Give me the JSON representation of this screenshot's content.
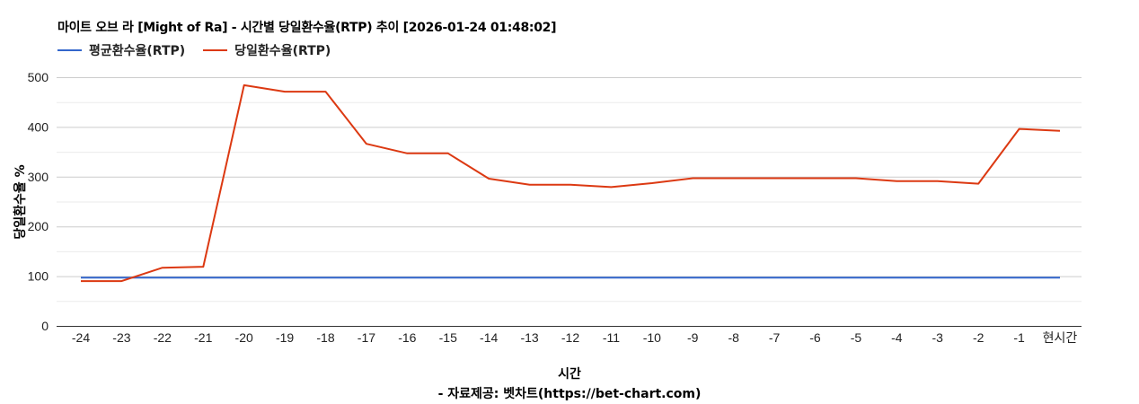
{
  "header": {
    "title": "마이트 오브 라 [Might of Ra] - 시간별 당일환수율(RTP) 추이 [2026-01-24 01:48:02]"
  },
  "legend": {
    "items": [
      {
        "label": "평균환수율(RTP)",
        "color": "#3366cc"
      },
      {
        "label": "당일환수율(RTP)",
        "color": "#dc3912"
      }
    ]
  },
  "axes": {
    "y_title": "당일환수율 %",
    "x_title": "시간",
    "y_ticks": [
      "0",
      "100",
      "200",
      "300",
      "400",
      "500"
    ],
    "x_ticks": [
      "-24",
      "-23",
      "-22",
      "-21",
      "-20",
      "-19",
      "-18",
      "-17",
      "-16",
      "-15",
      "-14",
      "-13",
      "-12",
      "-11",
      "-10",
      "-9",
      "-8",
      "-7",
      "-6",
      "-5",
      "-4",
      "-3",
      "-2",
      "-1",
      "현시간"
    ]
  },
  "footer": {
    "credit": "- 자료제공: 벳차트(https://bet-chart.com)"
  },
  "chart_data": {
    "type": "line",
    "title": "마이트 오브 라 [Might of Ra] - 시간별 당일환수율(RTP) 추이 [2026-01-24 01:48:02]",
    "xlabel": "시간",
    "ylabel": "당일환수율 %",
    "categories": [
      "-24",
      "-23",
      "-22",
      "-21",
      "-20",
      "-19",
      "-18",
      "-17",
      "-16",
      "-15",
      "-14",
      "-13",
      "-12",
      "-11",
      "-10",
      "-9",
      "-8",
      "-7",
      "-6",
      "-5",
      "-4",
      "-3",
      "-2",
      "-1",
      "현시간"
    ],
    "series": [
      {
        "name": "평균환수율(RTP)",
        "color": "#3366cc",
        "values": [
          97,
          97,
          97,
          97,
          97,
          97,
          97,
          97,
          97,
          97,
          97,
          97,
          97,
          97,
          97,
          97,
          97,
          97,
          97,
          97,
          97,
          97,
          97,
          97,
          97
        ]
      },
      {
        "name": "당일환수율(RTP)",
        "color": "#dc3912",
        "values": [
          90,
          90,
          117,
          119,
          484,
          471,
          471,
          366,
          347,
          347,
          296,
          284,
          284,
          279,
          287,
          297,
          297,
          297,
          297,
          297,
          291,
          291,
          286,
          396,
          392
        ]
      }
    ],
    "ylim": [
      0,
      500
    ],
    "y_major_ticks": [
      0,
      100,
      200,
      300,
      400,
      500
    ],
    "y_minor_gridlines": [
      50,
      150,
      250,
      350,
      450
    ],
    "grid": true,
    "legend_position": "top"
  }
}
